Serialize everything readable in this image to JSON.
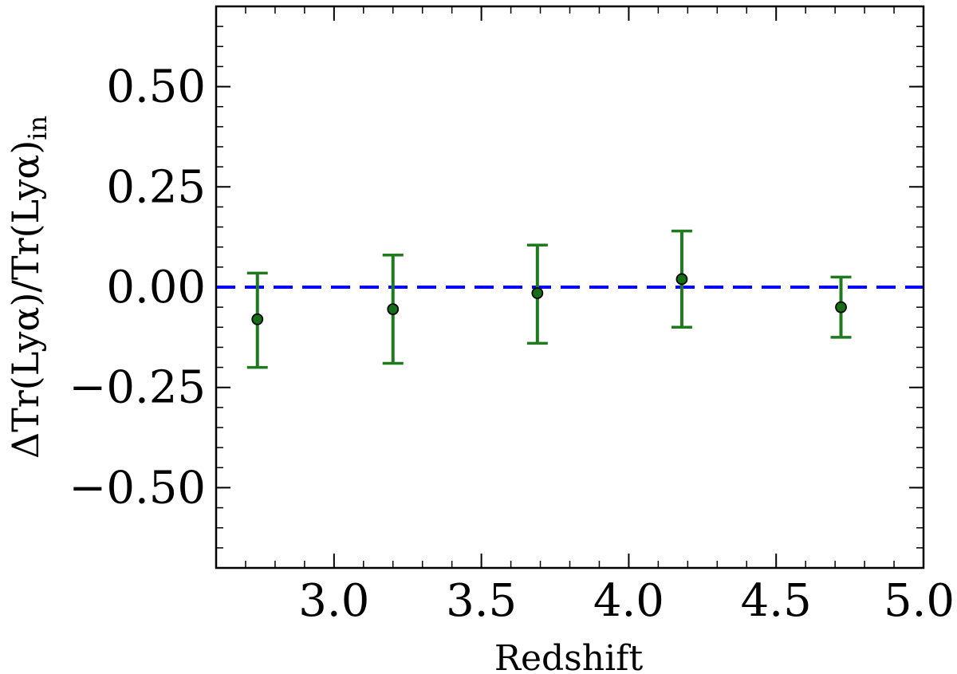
{
  "chart_data": {
    "type": "scatter",
    "xlabel": "Redshift",
    "ylabel": {
      "prefix": "ΔTr(Lyα)/Tr(Lyα)",
      "subscript": "in"
    },
    "xlim": [
      2.6,
      5.0
    ],
    "ylim": [
      -0.7,
      0.7
    ],
    "x_ticks": [
      3.0,
      3.5,
      4.0,
      4.5,
      5.0
    ],
    "x_tick_labels": [
      "3.0",
      "3.5",
      "4.0",
      "4.5",
      "5.0"
    ],
    "y_ticks": [
      0.5,
      0.25,
      0.0,
      -0.25,
      -0.5
    ],
    "y_tick_labels": [
      "0.50",
      "0.25",
      "0.00",
      "−0.25",
      "−0.50"
    ],
    "x_minor_step": 0.1,
    "y_minor_step": 0.05,
    "grid": false,
    "reference_line": {
      "y": 0.0,
      "style": "dashed",
      "color": "#0000ff"
    },
    "series": [
      {
        "color": "#1f7a1f",
        "marker_color": "#157015",
        "x": [
          2.74,
          3.2,
          3.69,
          4.18,
          4.72
        ],
        "y": [
          -0.08,
          -0.055,
          -0.015,
          0.02,
          -0.05
        ],
        "yerr_low": [
          -0.2,
          -0.19,
          -0.14,
          -0.1,
          -0.125
        ],
        "yerr_high": [
          0.035,
          0.08,
          0.105,
          0.14,
          0.025
        ]
      }
    ]
  }
}
